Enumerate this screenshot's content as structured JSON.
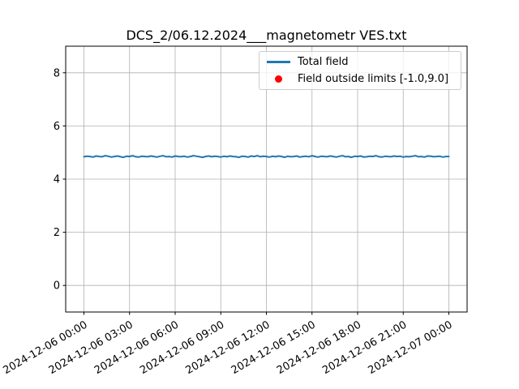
{
  "chart_data": {
    "type": "line",
    "title": "DCS_2/06.12.2024___magnetometr VES.txt",
    "xlabel": "",
    "ylabel": "",
    "grid": true,
    "legend_position": "upper right",
    "xlim_hours": [
      -1.2,
      25.2
    ],
    "ylim": [
      -1.0,
      9.0
    ],
    "y_ticks": [
      0,
      2,
      4,
      6,
      8
    ],
    "x_tick_hours": [
      0,
      3,
      6,
      9,
      12,
      15,
      18,
      21,
      24
    ],
    "x_tick_labels": [
      "2024-12-06 00:00",
      "2024-12-06 03:00",
      "2024-12-06 06:00",
      "2024-12-06 09:00",
      "2024-12-06 12:00",
      "2024-12-06 15:00",
      "2024-12-06 18:00",
      "2024-12-06 21:00",
      "2024-12-07 00:00"
    ],
    "legend": [
      {
        "label": "Total field",
        "marker": "line",
        "color": "#1f77b4"
      },
      {
        "label": "Field outside limits [-1.0,9.0]",
        "marker": "dot",
        "color": "#ff0000"
      }
    ],
    "colors": {
      "line": "#1f77b4",
      "outside_marker": "#ff0000",
      "grid": "#b0b0b0",
      "spine": "#000000"
    },
    "series": [
      {
        "name": "Total field",
        "color": "#1f77b4",
        "x_range_hours": [
          0,
          24
        ],
        "values": [
          4.84,
          4.86,
          4.85,
          4.83,
          4.87,
          4.85,
          4.84,
          4.88,
          4.86,
          4.83,
          4.85,
          4.87,
          4.84,
          4.82,
          4.86,
          4.85,
          4.88,
          4.84,
          4.83,
          4.86,
          4.85,
          4.84,
          4.87,
          4.85,
          4.83,
          4.86,
          4.88,
          4.84,
          4.85,
          4.83,
          4.87,
          4.85,
          4.84,
          4.86,
          4.83,
          4.85,
          4.88,
          4.86,
          4.84,
          4.82,
          4.85,
          4.87,
          4.84,
          4.86,
          4.85,
          4.83,
          4.86,
          4.84,
          4.87,
          4.85,
          4.84,
          4.82,
          4.86,
          4.85,
          4.83,
          4.87,
          4.85,
          4.88,
          4.84,
          4.86,
          4.85,
          4.83,
          4.86,
          4.84,
          4.87,
          4.85,
          4.82,
          4.86,
          4.84,
          4.85,
          4.87,
          4.83,
          4.85,
          4.86,
          4.84,
          4.88,
          4.85,
          4.83,
          4.86,
          4.85,
          4.84,
          4.87,
          4.85,
          4.83,
          4.86,
          4.88,
          4.84,
          4.85,
          4.82,
          4.86,
          4.85,
          4.87,
          4.83,
          4.84,
          4.86,
          4.85,
          4.88,
          4.84,
          4.83,
          4.86,
          4.85,
          4.84,
          4.87,
          4.85,
          4.86,
          4.83,
          4.85,
          4.84,
          4.86,
          4.88,
          4.84,
          4.85,
          4.83,
          4.87,
          4.86,
          4.84,
          4.85,
          4.86,
          4.83,
          4.85,
          4.85
        ]
      }
    ],
    "outside_points": []
  }
}
